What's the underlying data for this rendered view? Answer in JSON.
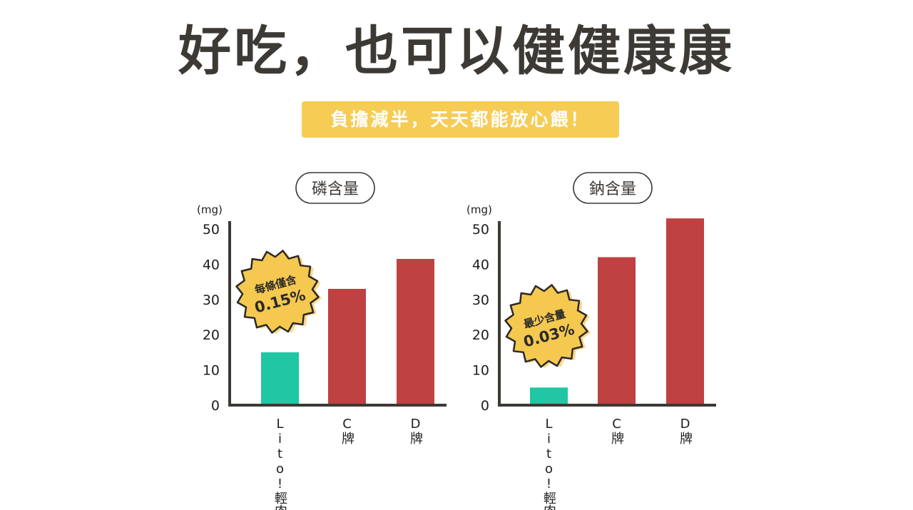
{
  "header": {
    "title": "好吃，也可以健健康康",
    "subtitle": "負擔減半，天天都能放心餵！"
  },
  "colors": {
    "highlight": "#f6cc55",
    "bar_lito": "#21c6a4",
    "bar_other": "#bf4141",
    "burst": "#f5c84f"
  },
  "chart_data": [
    {
      "type": "bar",
      "title": "磷含量",
      "ylabel": "(mg)",
      "ylim": [
        0,
        50
      ],
      "yticks": [
        "0",
        "10",
        "20",
        "30",
        "40",
        "50"
      ],
      "categories": [
        "Lito!輕肉泥",
        "C牌",
        "D牌"
      ],
      "values": [
        15,
        33,
        41.5
      ],
      "callout": {
        "line1": "每條僅含",
        "line2": "0.15%"
      }
    },
    {
      "type": "bar",
      "title": "鈉含量",
      "ylabel": "(mg)",
      "ylim": [
        0,
        50
      ],
      "yticks": [
        "0",
        "10",
        "20",
        "30",
        "40",
        "50"
      ],
      "categories": [
        "Lito!輕肉泥",
        "C牌",
        "D牌"
      ],
      "values": [
        5,
        42,
        53
      ],
      "callout": {
        "line1": "最少含量",
        "line2": "0.03%"
      }
    }
  ]
}
